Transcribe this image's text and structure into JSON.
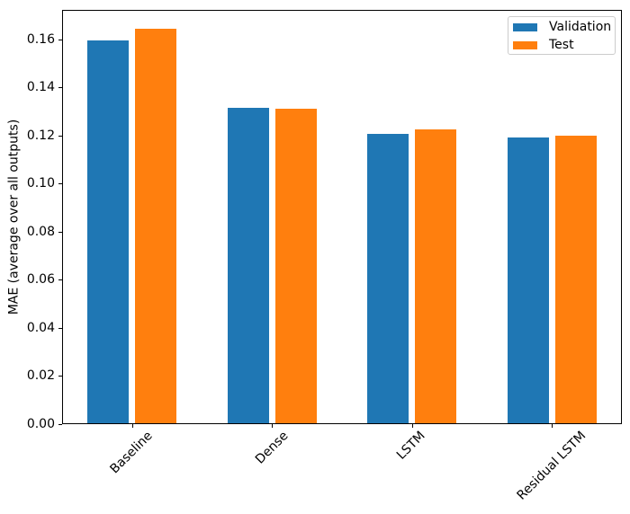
{
  "chart_data": {
    "type": "bar",
    "title": "",
    "categories": [
      "Baseline",
      "Dense",
      "LSTM",
      "Residual LSTM"
    ],
    "series": [
      {
        "name": "Validation",
        "color": "#1f77b4",
        "values": [
          0.1595,
          0.1315,
          0.1205,
          0.119
        ]
      },
      {
        "name": "Test",
        "color": "#ff7f0e",
        "values": [
          0.1645,
          0.131,
          0.1225,
          0.12
        ]
      }
    ],
    "xlabel": "",
    "ylabel": "MAE (average over all outputs)",
    "ylim": [
      0,
      0.1722
    ],
    "ytick_values": [
      0.0,
      0.02,
      0.04,
      0.06,
      0.08,
      0.1,
      0.12,
      0.14,
      0.16
    ],
    "ytick_labels": [
      "0.00",
      "0.02",
      "0.04",
      "0.06",
      "0.08",
      "0.10",
      "0.12",
      "0.14",
      "0.16"
    ],
    "xtick_rotation_deg": 45,
    "grid": false,
    "legend": {
      "position": "upper right",
      "entries": [
        "Validation",
        "Test"
      ]
    },
    "colors": {
      "validation": "#1f77b4",
      "test": "#ff7f0e",
      "axis": "#000000",
      "text": "#000000",
      "background": "#ffffff",
      "legend_border": "#cccccc"
    }
  }
}
